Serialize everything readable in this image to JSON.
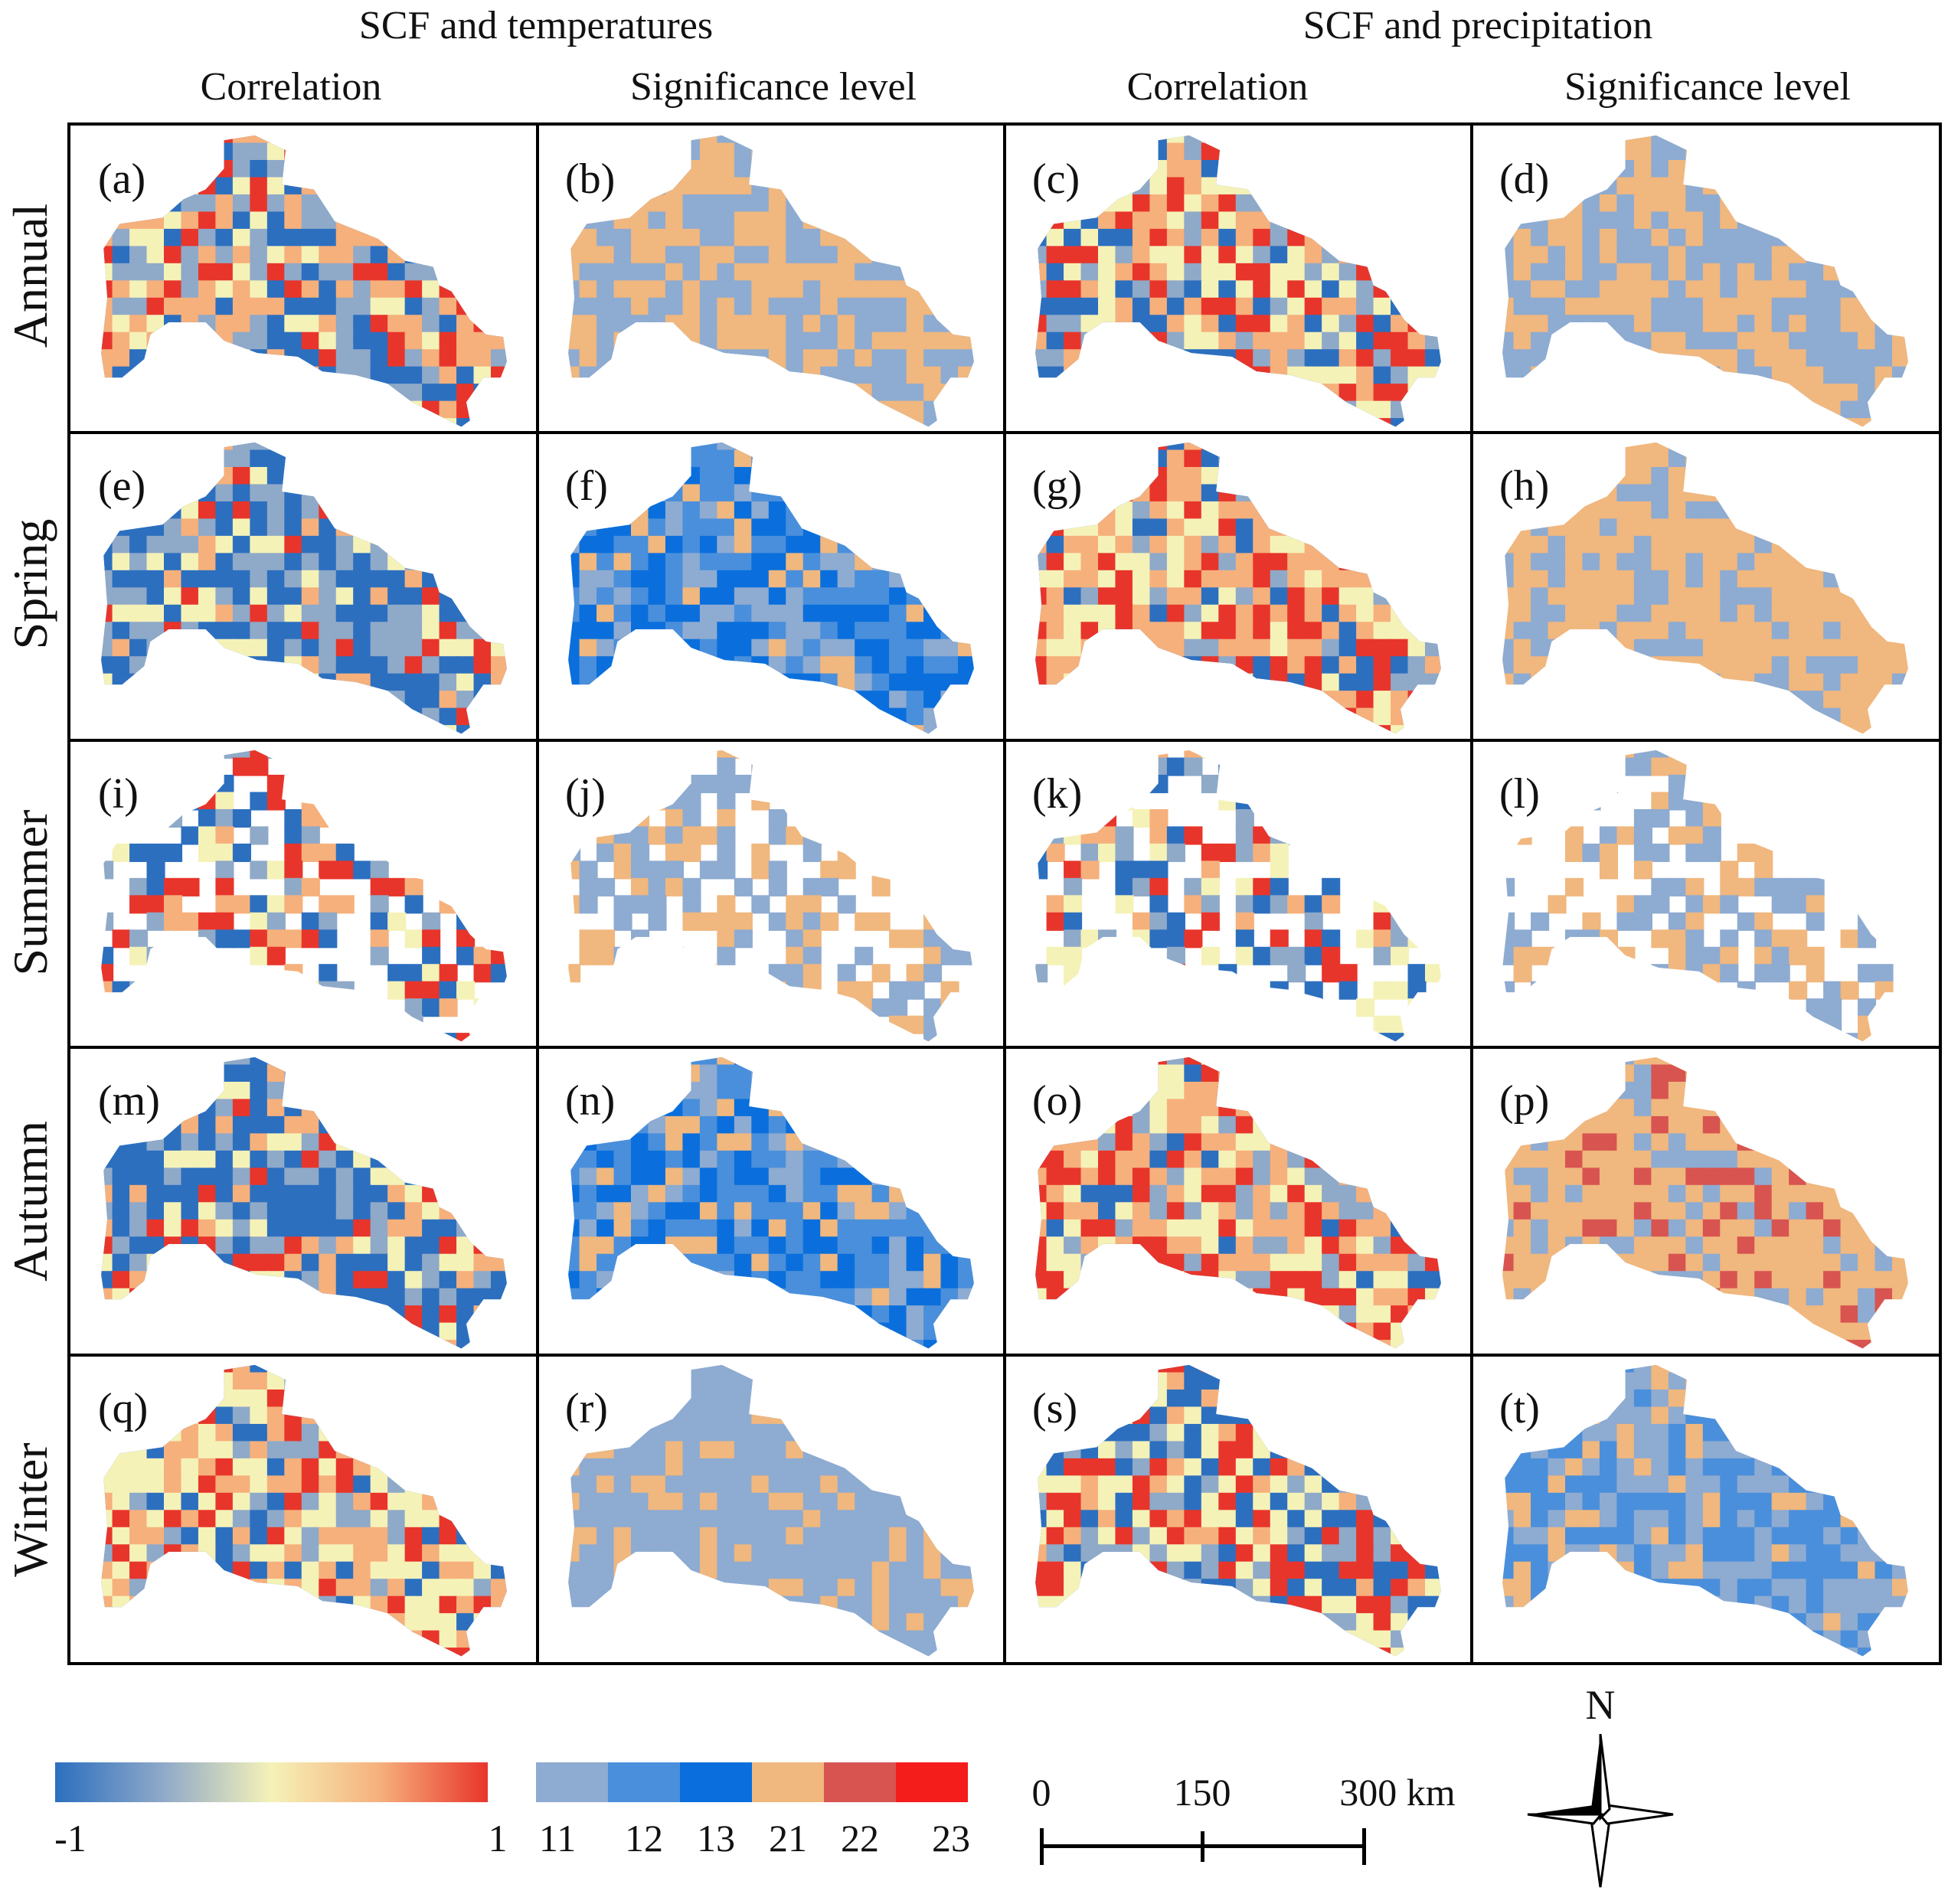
{
  "headers": {
    "group_left": "SCF and temperatures",
    "group_right": "SCF and precipitation",
    "columns": [
      "Correlation",
      "Significance level",
      "Correlation",
      "Significance level"
    ]
  },
  "rows": [
    "Annual",
    "Spring",
    "Summer",
    "Autumn",
    "Winter"
  ],
  "panels": [
    {
      "label": "(a)",
      "type": "correlation",
      "dominant": "mixed warm north, cool centre"
    },
    {
      "label": "(b)",
      "type": "significance",
      "dominant": "11 and 21"
    },
    {
      "label": "(c)",
      "type": "correlation",
      "dominant": "warm south-centre"
    },
    {
      "label": "(d)",
      "type": "significance",
      "dominant": "11 and 21"
    },
    {
      "label": "(e)",
      "type": "correlation",
      "dominant": "cool"
    },
    {
      "label": "(f)",
      "type": "significance",
      "dominant": "12 and 13"
    },
    {
      "label": "(g)",
      "type": "correlation",
      "dominant": "warm"
    },
    {
      "label": "(h)",
      "type": "significance",
      "dominant": "21"
    },
    {
      "label": "(i)",
      "type": "correlation",
      "dominant": "sparse"
    },
    {
      "label": "(j)",
      "type": "significance",
      "dominant": "sparse"
    },
    {
      "label": "(k)",
      "type": "correlation",
      "dominant": "sparse"
    },
    {
      "label": "(l)",
      "type": "significance",
      "dominant": "sparse"
    },
    {
      "label": "(m)",
      "type": "correlation",
      "dominant": "cool centre, warm edges"
    },
    {
      "label": "(n)",
      "type": "significance",
      "dominant": "12 and 13"
    },
    {
      "label": "(o)",
      "type": "correlation",
      "dominant": "warm"
    },
    {
      "label": "(p)",
      "type": "significance",
      "dominant": "21 and 22"
    },
    {
      "label": "(q)",
      "type": "correlation",
      "dominant": "warm"
    },
    {
      "label": "(r)",
      "type": "significance",
      "dominant": "11"
    },
    {
      "label": "(s)",
      "type": "correlation",
      "dominant": "mixed"
    },
    {
      "label": "(t)",
      "type": "significance",
      "dominant": "11 and 12"
    }
  ],
  "legend": {
    "correlation": {
      "min_label": "-1",
      "max_label": "1",
      "colors": [
        "#2c6fbf",
        "#8fa9c8",
        "#f5f2b8",
        "#f6b07c",
        "#e8352b"
      ]
    },
    "significance": [
      {
        "label": "11",
        "color": "#8eabd1"
      },
      {
        "label": "12",
        "color": "#4a8fdb"
      },
      {
        "label": "13",
        "color": "#0a6fdc"
      },
      {
        "label": "21",
        "color": "#f0b77e"
      },
      {
        "label": "22",
        "color": "#d85450"
      },
      {
        "label": "23",
        "color": "#f51c1c"
      }
    ]
  },
  "scale_bar": {
    "ticks": [
      "0",
      "150",
      "300 km"
    ]
  },
  "north_arrow": {
    "label": "N"
  }
}
